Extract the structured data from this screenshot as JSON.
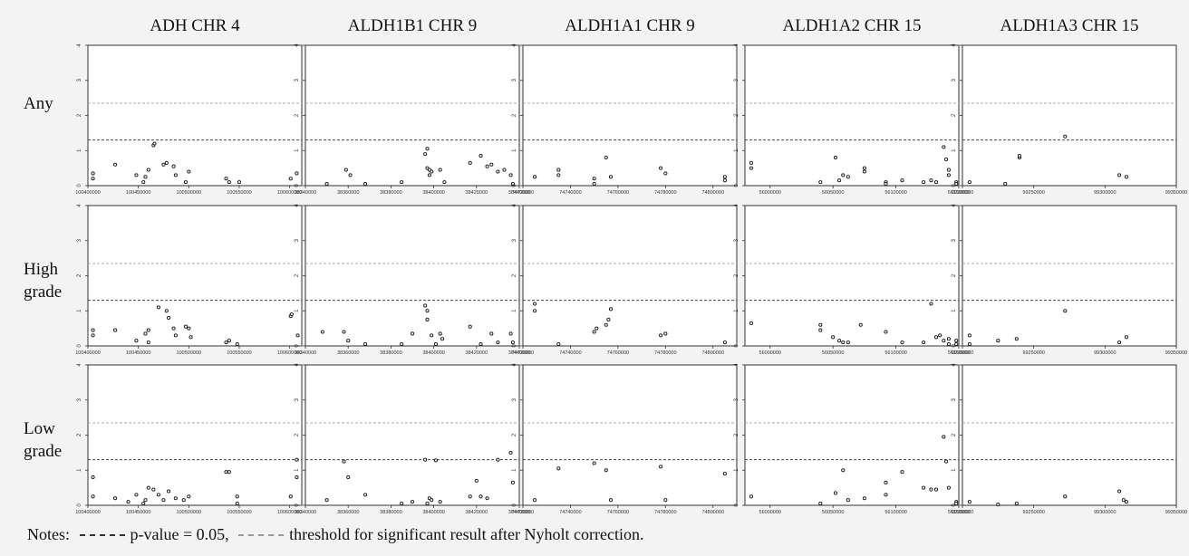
{
  "figure": {
    "notes": {
      "prefix": "Notes:",
      "pvalue_text": "p-value = 0.05,",
      "nyholt_text": "threshold for significant result after Nyholt correction."
    },
    "threshold_colors": {
      "pvalue": "#444444",
      "nyholt": "#aaaaaa"
    }
  },
  "chart_data": {
    "type": "scatter",
    "row_labels": [
      "Any",
      "High\ngrade",
      "Low\ngrade"
    ],
    "ylim": [
      0,
      4
    ],
    "yticks": [
      "0",
      "1",
      "2",
      "3",
      "4"
    ],
    "hlines": {
      "pvalue_005": 1.3,
      "nyholt": 2.35
    },
    "genes": [
      {
        "title": "ADH CHR 4",
        "xlim": [
          100400000,
          100612000
        ],
        "xticks": [
          100400000,
          100450000,
          100500000,
          100550000,
          100600000
        ],
        "rows": [
          [
            [
              100405000,
              0.2
            ],
            [
              100405000,
              0.35
            ],
            [
              100427000,
              0.6
            ],
            [
              100448000,
              0.3
            ],
            [
              100455000,
              0.1
            ],
            [
              100457000,
              0.25
            ],
            [
              100460000,
              0.45
            ],
            [
              100465000,
              1.15
            ],
            [
              100466000,
              1.2
            ],
            [
              100475000,
              0.6
            ],
            [
              100478000,
              0.65
            ],
            [
              100485000,
              0.55
            ],
            [
              100487000,
              0.3
            ],
            [
              100497000,
              0.1
            ],
            [
              100500000,
              0.4
            ],
            [
              100537000,
              0.2
            ],
            [
              100540000,
              0.1
            ],
            [
              100550000,
              0.1
            ],
            [
              100601000,
              0.2
            ],
            [
              100607000,
              0.35
            ]
          ],
          [
            [
              100405000,
              0.3
            ],
            [
              100405000,
              0.45
            ],
            [
              100427000,
              0.45
            ],
            [
              100448000,
              0.15
            ],
            [
              100457000,
              0.35
            ],
            [
              100460000,
              0.1
            ],
            [
              100460000,
              0.45
            ],
            [
              100470000,
              1.1
            ],
            [
              100478000,
              1.0
            ],
            [
              100480000,
              0.8
            ],
            [
              100485000,
              0.5
            ],
            [
              100487000,
              0.3
            ],
            [
              100497000,
              0.55
            ],
            [
              100500000,
              0.5
            ],
            [
              100502000,
              0.25
            ],
            [
              100537000,
              0.1
            ],
            [
              100540000,
              0.15
            ],
            [
              100548000,
              0.05
            ],
            [
              100601000,
              0.85
            ],
            [
              100602000,
              0.9
            ],
            [
              100608000,
              0.3
            ]
          ],
          [
            [
              100405000,
              0.8
            ],
            [
              100405000,
              0.25
            ],
            [
              100427000,
              0.2
            ],
            [
              100440000,
              0.1
            ],
            [
              100448000,
              0.3
            ],
            [
              100455000,
              0.05
            ],
            [
              100457000,
              0.15
            ],
            [
              100460000,
              0.5
            ],
            [
              100465000,
              0.45
            ],
            [
              100470000,
              0.3
            ],
            [
              100475000,
              0.15
            ],
            [
              100480000,
              0.4
            ],
            [
              100487000,
              0.2
            ],
            [
              100495000,
              0.15
            ],
            [
              100500000,
              0.25
            ],
            [
              100537000,
              0.95
            ],
            [
              100540000,
              0.95
            ],
            [
              100548000,
              0.25
            ],
            [
              100548000,
              0.05
            ],
            [
              100601000,
              0.25
            ],
            [
              100607000,
              0.8
            ],
            [
              100607000,
              1.3
            ]
          ]
        ]
      },
      {
        "title": "ALDH1B1 CHR 9",
        "xlim": [
          38340000,
          38440000
        ],
        "xticks": [
          38340000,
          38360000,
          38380000,
          38400000,
          38420000,
          38440000
        ],
        "rows": [
          [
            [
              38350000,
              0.05
            ],
            [
              38359000,
              0.45
            ],
            [
              38361000,
              0.3
            ],
            [
              38368000,
              0.05
            ],
            [
              38385000,
              0.1
            ],
            [
              38396000,
              0.9
            ],
            [
              38397000,
              1.05
            ],
            [
              38397000,
              0.5
            ],
            [
              38398000,
              0.45
            ],
            [
              38398000,
              0.3
            ],
            [
              38399000,
              0.4
            ],
            [
              38403000,
              0.45
            ],
            [
              38405000,
              0.1
            ],
            [
              38417000,
              0.65
            ],
            [
              38422000,
              0.85
            ],
            [
              38425000,
              0.55
            ],
            [
              38427000,
              0.6
            ],
            [
              38430000,
              0.4
            ],
            [
              38433000,
              0.45
            ],
            [
              38436000,
              0.3
            ],
            [
              38437000,
              0.05
            ]
          ],
          [
            [
              38348000,
              0.4
            ],
            [
              38358000,
              0.4
            ],
            [
              38360000,
              0.15
            ],
            [
              38368000,
              0.05
            ],
            [
              38385000,
              0.05
            ],
            [
              38390000,
              0.35
            ],
            [
              38396000,
              1.15
            ],
            [
              38397000,
              1.0
            ],
            [
              38397000,
              0.75
            ],
            [
              38399000,
              0.3
            ],
            [
              38401000,
              0.05
            ],
            [
              38403000,
              0.35
            ],
            [
              38404000,
              0.2
            ],
            [
              38417000,
              0.55
            ],
            [
              38422000,
              0.05
            ],
            [
              38427000,
              0.35
            ],
            [
              38430000,
              0.1
            ],
            [
              38436000,
              0.35
            ],
            [
              38437000,
              0.1
            ]
          ],
          [
            [
              38350000,
              0.15
            ],
            [
              38358000,
              1.25
            ],
            [
              38360000,
              0.8
            ],
            [
              38368000,
              0.3
            ],
            [
              38385000,
              0.05
            ],
            [
              38390000,
              0.1
            ],
            [
              38396000,
              1.3
            ],
            [
              38397000,
              0.05
            ],
            [
              38398000,
              0.2
            ],
            [
              38399000,
              0.15
            ],
            [
              38401000,
              1.28
            ],
            [
              38403000,
              0.1
            ],
            [
              38417000,
              0.25
            ],
            [
              38420000,
              0.7
            ],
            [
              38422000,
              0.25
            ],
            [
              38425000,
              0.2
            ],
            [
              38430000,
              1.3
            ],
            [
              38436000,
              1.5
            ],
            [
              38437000,
              0.65
            ]
          ]
        ]
      },
      {
        "title": "ALDH1A1 CHR 9",
        "xlim": [
          74720000,
          74810000
        ],
        "xticks": [
          74720000,
          74740000,
          74760000,
          74780000,
          74800000
        ],
        "rows": [
          [
            [
              74725000,
              0.25
            ],
            [
              74735000,
              0.3
            ],
            [
              74735000,
              0.45
            ],
            [
              74750000,
              0.05
            ],
            [
              74750000,
              0.2
            ],
            [
              74755000,
              0.8
            ],
            [
              74757000,
              0.25
            ],
            [
              74778000,
              0.5
            ],
            [
              74780000,
              0.35
            ],
            [
              74805000,
              0.15
            ],
            [
              74805000,
              0.25
            ]
          ],
          [
            [
              74725000,
              1.2
            ],
            [
              74725000,
              1.0
            ],
            [
              74735000,
              0.05
            ],
            [
              74750000,
              0.4
            ],
            [
              74751000,
              0.5
            ],
            [
              74755000,
              0.6
            ],
            [
              74756000,
              0.75
            ],
            [
              74757000,
              1.05
            ],
            [
              74778000,
              0.3
            ],
            [
              74780000,
              0.35
            ],
            [
              74805000,
              0.1
            ]
          ],
          [
            [
              74725000,
              0.15
            ],
            [
              74735000,
              1.05
            ],
            [
              74750000,
              1.2
            ],
            [
              74755000,
              1.0
            ],
            [
              74757000,
              0.15
            ],
            [
              74778000,
              1.1
            ],
            [
              74780000,
              0.15
            ],
            [
              74805000,
              0.9
            ]
          ]
        ]
      },
      {
        "title": "ALDH1A2 CHR 15",
        "xlim": [
          55980000,
          56150000
        ],
        "xticks": [
          56000000,
          56050000,
          56100000,
          56150000
        ],
        "rows": [
          [
            [
              55985000,
              0.5
            ],
            [
              55985000,
              0.65
            ],
            [
              56040000,
              0.1
            ],
            [
              56052000,
              0.8
            ],
            [
              56055000,
              0.15
            ],
            [
              56058000,
              0.3
            ],
            [
              56062000,
              0.25
            ],
            [
              56075000,
              0.5
            ],
            [
              56075000,
              0.4
            ],
            [
              56092000,
              0.1
            ],
            [
              56092000,
              0.05
            ],
            [
              56105000,
              0.15
            ],
            [
              56122000,
              0.1
            ],
            [
              56128000,
              0.15
            ],
            [
              56132000,
              0.1
            ],
            [
              56138000,
              1.1
            ],
            [
              56140000,
              0.75
            ],
            [
              56142000,
              0.45
            ],
            [
              56142000,
              0.3
            ],
            [
              56148000,
              0.1
            ],
            [
              56148000,
              0.05
            ]
          ],
          [
            [
              55985000,
              0.65
            ],
            [
              56040000,
              0.6
            ],
            [
              56040000,
              0.45
            ],
            [
              56050000,
              0.25
            ],
            [
              56055000,
              0.15
            ],
            [
              56058000,
              0.1
            ],
            [
              56062000,
              0.1
            ],
            [
              56072000,
              0.6
            ],
            [
              56092000,
              0.4
            ],
            [
              56105000,
              0.1
            ],
            [
              56122000,
              0.1
            ],
            [
              56128000,
              1.2
            ],
            [
              56132000,
              0.25
            ],
            [
              56135000,
              0.3
            ],
            [
              56138000,
              0.15
            ],
            [
              56142000,
              0.2
            ],
            [
              56142000,
              0.05
            ],
            [
              56148000,
              0.15
            ],
            [
              56148000,
              0.05
            ]
          ],
          [
            [
              55985000,
              0.25
            ],
            [
              56040000,
              0.05
            ],
            [
              56052000,
              0.35
            ],
            [
              56058000,
              1.0
            ],
            [
              56062000,
              0.15
            ],
            [
              56075000,
              0.2
            ],
            [
              56092000,
              0.65
            ],
            [
              56092000,
              0.3
            ],
            [
              56105000,
              0.95
            ],
            [
              56122000,
              0.5
            ],
            [
              56128000,
              0.45
            ],
            [
              56132000,
              0.45
            ],
            [
              56138000,
              1.95
            ],
            [
              56140000,
              1.25
            ],
            [
              56142000,
              0.5
            ],
            [
              56148000,
              0.1
            ],
            [
              56148000,
              0.05
            ]
          ]
        ]
      },
      {
        "title": "ALDH1A3 CHR 15",
        "xlim": [
          99200000,
          99350000
        ],
        "xticks": [
          99200000,
          99250000,
          99300000,
          99350000
        ],
        "rows": [
          [
            [
              99205000,
              0.1
            ],
            [
              99230000,
              0.05
            ],
            [
              99240000,
              0.8
            ],
            [
              99240000,
              0.85
            ],
            [
              99272000,
              1.4
            ],
            [
              99310000,
              0.3
            ],
            [
              99315000,
              0.25
            ]
          ],
          [
            [
              99205000,
              0.3
            ],
            [
              99205000,
              0.05
            ],
            [
              99225000,
              0.15
            ],
            [
              99238000,
              0.2
            ],
            [
              99272000,
              1.0
            ],
            [
              99310000,
              0.1
            ],
            [
              99315000,
              0.25
            ]
          ],
          [
            [
              99205000,
              0.1
            ],
            [
              99225000,
              0.02
            ],
            [
              99238000,
              0.05
            ],
            [
              99272000,
              0.25
            ],
            [
              99310000,
              0.4
            ],
            [
              99313000,
              0.15
            ],
            [
              99315000,
              0.1
            ]
          ]
        ]
      }
    ]
  }
}
